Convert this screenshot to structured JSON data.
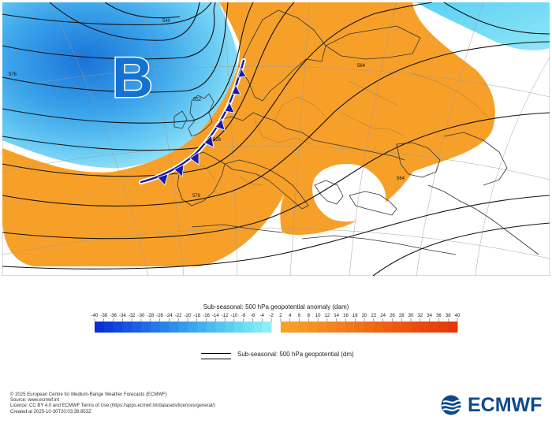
{
  "map": {
    "low_pressure_label": "B",
    "contour_labels": [
      "576",
      "552",
      "528",
      "564",
      "540",
      "564",
      "576",
      "552",
      "540",
      "576"
    ]
  },
  "legend": {
    "title": "Sub-seasonal: 500 hPa geopotential anomaly (dam)",
    "ticks": [
      "-40",
      "-38",
      "-36",
      "-34",
      "-32",
      "-30",
      "-28",
      "-26",
      "-24",
      "-22",
      "-20",
      "-18",
      "-16",
      "-14",
      "-12",
      "-10",
      "-8",
      "-6",
      "-4",
      "-2",
      "2",
      "4",
      "6",
      "8",
      "10",
      "12",
      "14",
      "16",
      "18",
      "20",
      "22",
      "24",
      "26",
      "28",
      "30",
      "32",
      "34",
      "36",
      "38",
      "40"
    ],
    "negative_colors": [
      "#0b2fd8",
      "#0f3bdb",
      "#1346de",
      "#1752e1",
      "#1c5ee4",
      "#206ae6",
      "#2476e9",
      "#2a82ea",
      "#308eeb",
      "#369aec",
      "#3ca6ed",
      "#42b0ee",
      "#4abbf0",
      "#52c5f1",
      "#5acff2",
      "#64d8f3",
      "#70e0f4",
      "#7ee7f5",
      "#8eeef6"
    ],
    "positive_colors": [
      "#f7a128",
      "#f79c26",
      "#f69624",
      "#f59022",
      "#f48a20",
      "#f3841e",
      "#f27e1c",
      "#f1781a",
      "#f07218",
      "#ef6c16",
      "#ee6614",
      "#ed6012",
      "#ec5a11",
      "#eb5410",
      "#ea4e0f",
      "#e9480e",
      "#e8420d",
      "#e73c0c",
      "#e6360b"
    ],
    "line_label": "Sub-seasonal: 500 hPa geopotential (dm)"
  },
  "footer": {
    "copyright": "© 2025 European Centre for Medium-Range Weather Forecasts (ECMWF)",
    "source": "Source: www.ecmwf.int",
    "licence": "Licence: CC BY 4.0 and ECMWF Terms of Use (https://apps.ecmwf.int/datasets/licences/general/)",
    "created": "Created at 2025-10-30T20:03:38.853Z"
  },
  "logo": {
    "text": "ECMWF",
    "color": "#0d4a8c"
  }
}
